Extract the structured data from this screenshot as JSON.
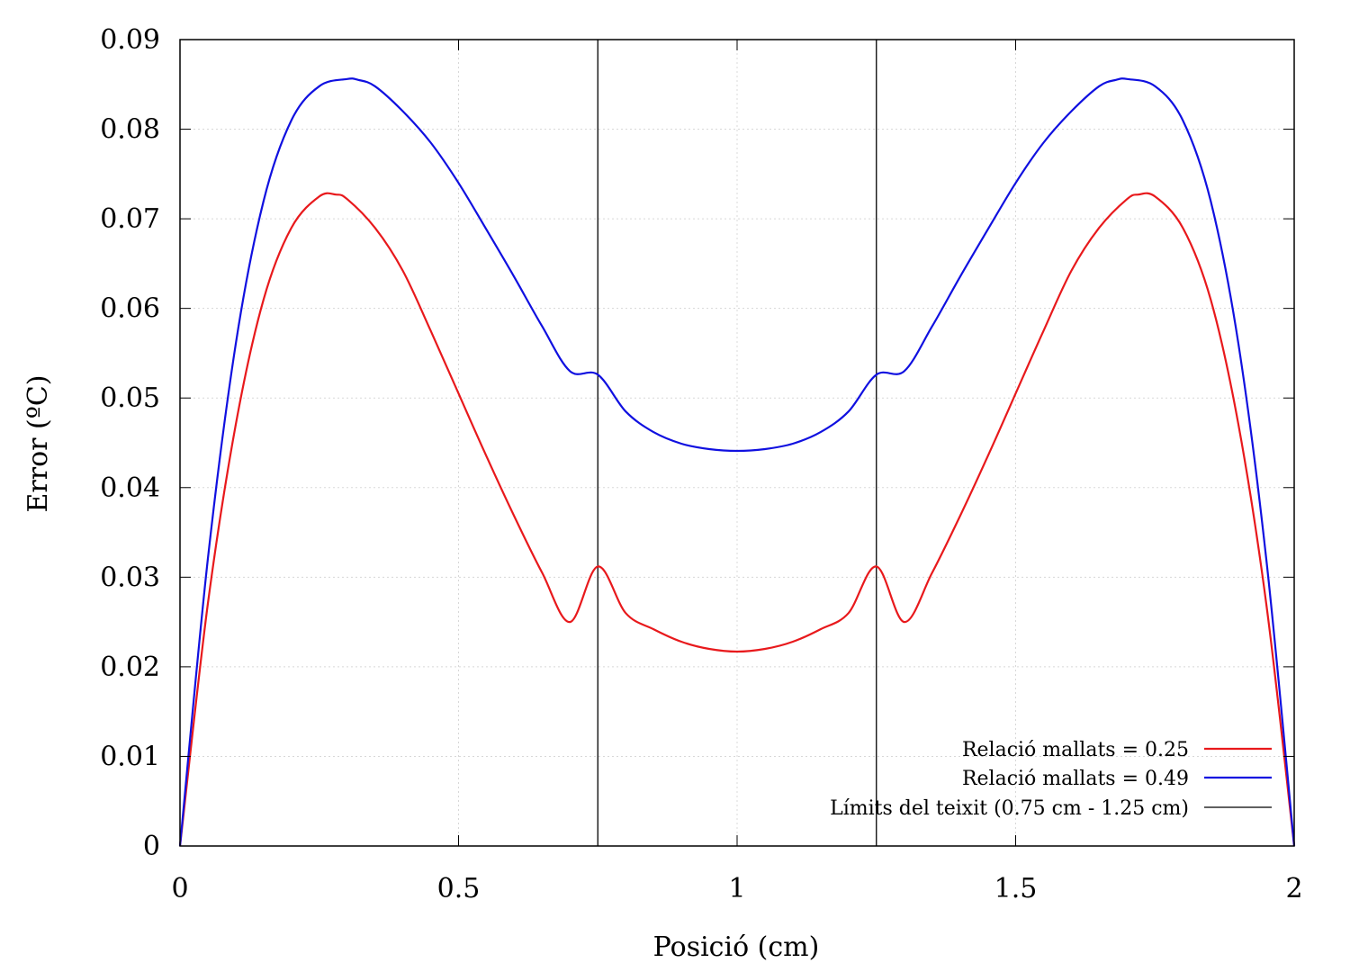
{
  "chart_data": {
    "type": "line",
    "xlabel": "Posició (cm)",
    "ylabel": "Error (ºC)",
    "xlim": [
      0,
      2
    ],
    "ylim": [
      0,
      0.09
    ],
    "x_ticks": [
      0,
      0.5,
      1,
      1.5,
      2
    ],
    "x_tick_labels": [
      "0",
      "0.5",
      "1",
      "1.5",
      "2"
    ],
    "y_ticks": [
      0,
      0.01,
      0.02,
      0.03,
      0.04,
      0.05,
      0.06,
      0.07,
      0.08,
      0.09
    ],
    "y_tick_labels": [
      "0",
      "0.01",
      "0.02",
      "0.03",
      "0.04",
      "0.05",
      "0.06",
      "0.07",
      "0.08",
      "0.09"
    ],
    "grid": true,
    "legend_position": "bottom-right",
    "series": [
      {
        "name": "Relació mallats = 0.25",
        "color": "#e8191c",
        "x": [
          0,
          0.05,
          0.1,
          0.15,
          0.2,
          0.25,
          0.28,
          0.3,
          0.35,
          0.4,
          0.45,
          0.5,
          0.55,
          0.6,
          0.65,
          0.7,
          0.75,
          0.8,
          0.85,
          0.9,
          0.95,
          1.0,
          1.05,
          1.1,
          1.15,
          1.2,
          1.25,
          1.3,
          1.35,
          1.4,
          1.45,
          1.5,
          1.55,
          1.6,
          1.65,
          1.7,
          1.72,
          1.75,
          1.8,
          1.85,
          1.9,
          1.95,
          2.0
        ],
        "y": [
          0,
          0.027,
          0.047,
          0.061,
          0.069,
          0.0725,
          0.0727,
          0.0722,
          0.069,
          0.0642,
          0.0575,
          0.0505,
          0.0435,
          0.0368,
          0.0305,
          0.025,
          0.0312,
          0.026,
          0.0242,
          0.0228,
          0.022,
          0.0217,
          0.022,
          0.0228,
          0.0242,
          0.026,
          0.0312,
          0.025,
          0.0305,
          0.0368,
          0.0435,
          0.0505,
          0.0575,
          0.0642,
          0.069,
          0.0722,
          0.0727,
          0.0725,
          0.069,
          0.061,
          0.047,
          0.027,
          0
        ]
      },
      {
        "name": "Relació mallats = 0.49",
        "color": "#1010e0",
        "x": [
          0,
          0.05,
          0.1,
          0.15,
          0.2,
          0.25,
          0.3,
          0.32,
          0.35,
          0.4,
          0.45,
          0.5,
          0.55,
          0.6,
          0.65,
          0.7,
          0.75,
          0.8,
          0.85,
          0.9,
          0.95,
          1.0,
          1.05,
          1.1,
          1.15,
          1.2,
          1.25,
          1.3,
          1.35,
          1.4,
          1.45,
          1.5,
          1.55,
          1.6,
          1.65,
          1.68,
          1.7,
          1.75,
          1.8,
          1.85,
          1.9,
          1.95,
          2.0
        ],
        "y": [
          0,
          0.032,
          0.056,
          0.072,
          0.081,
          0.0848,
          0.0856,
          0.0855,
          0.0848,
          0.082,
          0.0785,
          0.074,
          0.0688,
          0.0635,
          0.058,
          0.053,
          0.0526,
          0.0485,
          0.0462,
          0.0449,
          0.0443,
          0.0441,
          0.0443,
          0.0449,
          0.0462,
          0.0485,
          0.0526,
          0.053,
          0.058,
          0.0635,
          0.0688,
          0.074,
          0.0785,
          0.082,
          0.0848,
          0.0855,
          0.0856,
          0.0848,
          0.081,
          0.072,
          0.056,
          0.032,
          0
        ]
      },
      {
        "name": "Límits del teixit (0.75 cm - 1.25 cm)",
        "color": "#000000",
        "vlines": [
          0.75,
          1.25
        ]
      }
    ]
  }
}
